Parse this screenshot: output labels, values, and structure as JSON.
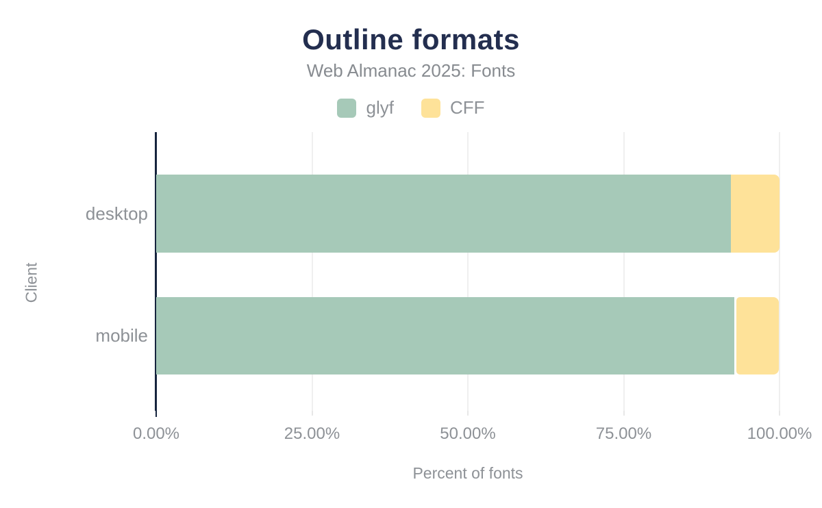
{
  "title": "Outline formats",
  "subtitle": "Web Almanac 2025: Fonts",
  "legend": {
    "items": [
      {
        "label": "glyf",
        "swatch_icon": "legend-swatch-icon",
        "color": "#a6c9b8"
      },
      {
        "label": "CFF",
        "swatch_icon": "legend-swatch-icon",
        "color": "#fee299"
      }
    ],
    "position": "top"
  },
  "chart_data": {
    "type": "bar",
    "orientation": "horizontal",
    "stacked": true,
    "title": "Outline formats",
    "subtitle": "Web Almanac 2025: Fonts",
    "categories": [
      "desktop",
      "mobile"
    ],
    "series": [
      {
        "name": "glyf",
        "color": "#a6c9b8",
        "values": [
          92.2,
          92.7
        ]
      },
      {
        "name": "CFF",
        "color": "#fee299",
        "values": [
          7.8,
          7.2
        ]
      }
    ],
    "xlabel": "Percent of fonts",
    "ylabel": "Client",
    "xlim": [
      0,
      100
    ],
    "x_tick_positions": [
      0,
      25,
      50,
      75,
      100
    ],
    "x_ticks": [
      "0.00%",
      "25.00%",
      "50.00%",
      "75.00%",
      "100.00%"
    ],
    "grid": true,
    "legend_position": "top"
  },
  "colors": {
    "title_navy": "#232e4f",
    "axis_navy": "#16243e",
    "text_gray": "#8d9196",
    "subtitle_gray": "#878b90",
    "gridline": "#efefef",
    "minor_tick": "#e7e7e7",
    "glyf_green": "#a6c9b8",
    "cff_yellow": "#fee299",
    "background": "#ffffff"
  }
}
